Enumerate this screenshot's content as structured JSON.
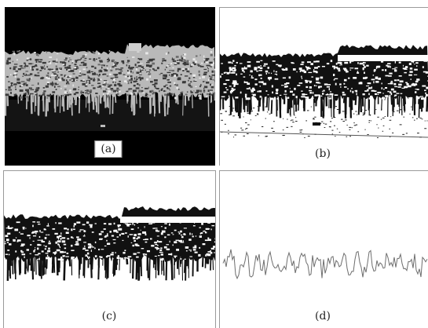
{
  "figure": {
    "panels": [
      {
        "id": "a",
        "label": "(a)",
        "kind": "grayscale-cross-section"
      },
      {
        "id": "b",
        "label": "(b)",
        "kind": "binarized-image"
      },
      {
        "id": "c",
        "label": "(c)",
        "kind": "cleaned-binary-image"
      },
      {
        "id": "d",
        "label": "(d)",
        "kind": "extracted-edge-profile"
      }
    ],
    "colors": {
      "background": "#ffffff",
      "panel_a_background": "#000000",
      "fiber": "#111111",
      "profile_line": "#6d6d6d",
      "border": "#9a9a9a"
    }
  }
}
